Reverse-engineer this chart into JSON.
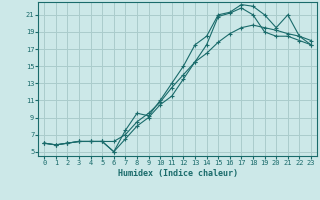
{
  "xlabel": "Humidex (Indice chaleur)",
  "bg_color": "#cce8e8",
  "grid_color": "#aacccc",
  "line_color": "#1a6b6b",
  "xlim": [
    -0.5,
    23.5
  ],
  "ylim": [
    4.5,
    22.5
  ],
  "xticks": [
    0,
    1,
    2,
    3,
    4,
    5,
    6,
    7,
    8,
    9,
    10,
    11,
    12,
    13,
    14,
    15,
    16,
    17,
    18,
    19,
    20,
    21,
    22,
    23
  ],
  "yticks": [
    5,
    7,
    9,
    11,
    13,
    15,
    17,
    19,
    21
  ],
  "line1_x": [
    0,
    1,
    2,
    3,
    4,
    5,
    6,
    7,
    8,
    9,
    10,
    11,
    12,
    13,
    14,
    15,
    16,
    17,
    18,
    19,
    20,
    21,
    22,
    23
  ],
  "line1_y": [
    6.0,
    5.8,
    6.0,
    6.2,
    6.2,
    6.2,
    5.0,
    7.5,
    9.5,
    9.2,
    11.0,
    13.0,
    15.0,
    17.5,
    18.5,
    21.0,
    21.3,
    22.2,
    22.0,
    21.0,
    19.5,
    21.0,
    18.5,
    17.5
  ],
  "line2_x": [
    0,
    1,
    2,
    3,
    4,
    5,
    6,
    7,
    8,
    9,
    10,
    11,
    12,
    13,
    14,
    15,
    16,
    17,
    18,
    19,
    20,
    21,
    22,
    23
  ],
  "line2_y": [
    6.0,
    5.8,
    6.0,
    6.2,
    6.2,
    6.2,
    5.0,
    6.5,
    8.0,
    9.0,
    10.5,
    11.5,
    13.5,
    15.5,
    17.5,
    20.8,
    21.2,
    21.8,
    21.0,
    19.0,
    18.5,
    18.5,
    18.0,
    17.5
  ],
  "line3_x": [
    0,
    1,
    2,
    3,
    4,
    5,
    6,
    7,
    8,
    9,
    10,
    11,
    12,
    13,
    14,
    15,
    16,
    17,
    18,
    19,
    20,
    21,
    22,
    23
  ],
  "line3_y": [
    6.0,
    5.8,
    6.0,
    6.2,
    6.2,
    6.2,
    6.2,
    7.0,
    8.5,
    9.5,
    10.8,
    12.5,
    14.0,
    15.5,
    16.5,
    17.8,
    18.8,
    19.5,
    19.8,
    19.5,
    19.2,
    18.8,
    18.5,
    18.0
  ]
}
